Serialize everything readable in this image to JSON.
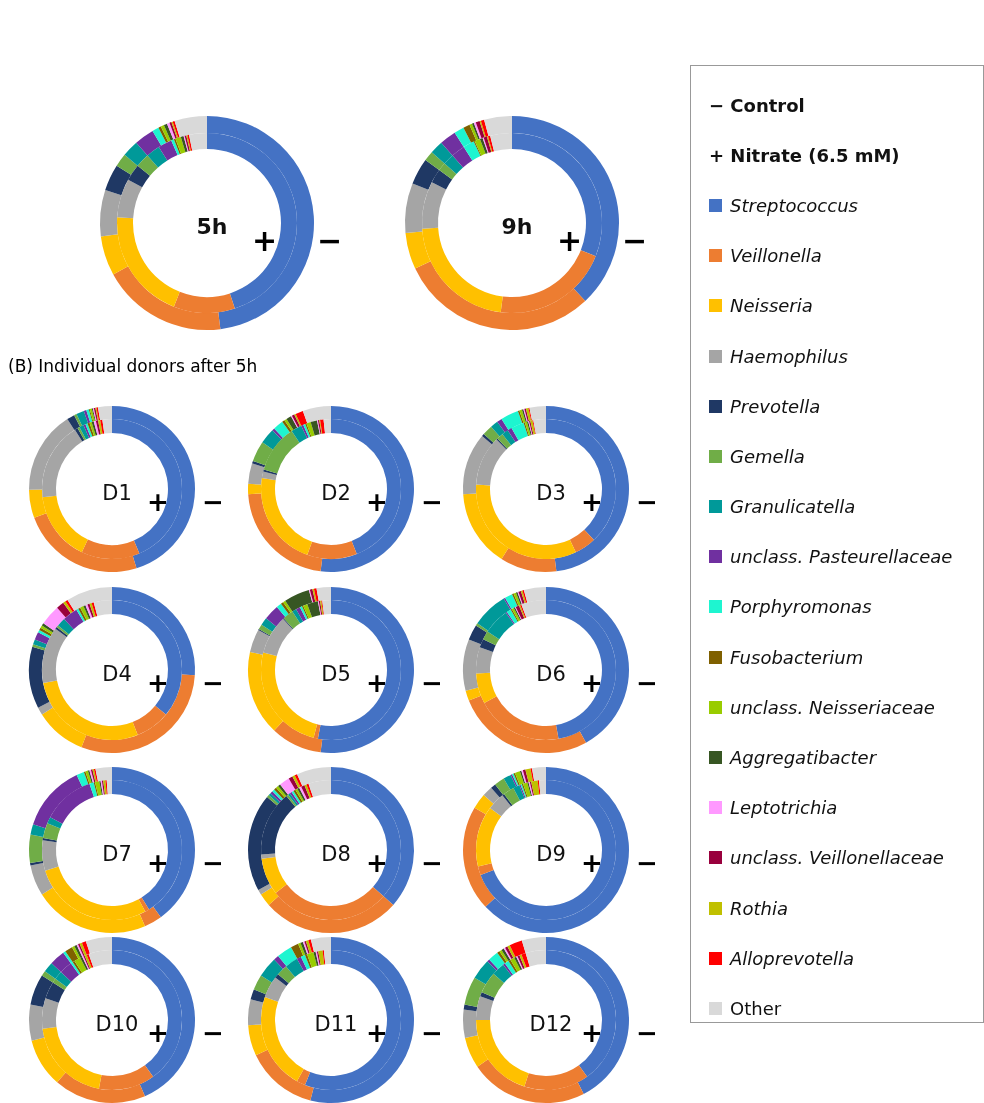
{
  "chart_data": [
    {
      "type": "donut",
      "title": "5h",
      "legend": "right",
      "annotations": [
        "− Control",
        "+ Nitrate (6.5 mM)"
      ],
      "categories": [
        "Streptococcus",
        "Veillonella",
        "Neisseria",
        "Haemophilus",
        "Prevotella",
        "Gemella",
        "Granulicatella",
        "unclass. Pasteurellaceae",
        "Porphyromonas",
        "Fusobacterium",
        "unclass. Neisseriaceae",
        "Aggregatibacter",
        "Leptotrichia",
        "unclass. Veillonellaceae",
        "Rothia",
        "Alloprevotella",
        "Other"
      ],
      "colors": [
        "#4472c4",
        "#ed7d31",
        "#ffc000",
        "#a5a5a5",
        "#1f3864",
        "#70ad47",
        "#009999",
        "#7030a0",
        "#1ef5d0",
        "#7f6000",
        "#99cc00",
        "#375623",
        "#ff99ff",
        "#99003d",
        "#c0c000",
        "#ff0000",
        "#d9d9d9"
      ],
      "series": [
        {
          "name": "−",
          "values": [
            48,
            19,
            6,
            7,
            4,
            2,
            2.5,
            3,
            1,
            0.4,
            0.5,
            0.5,
            0.4,
            0.3,
            0.2,
            0.3,
            4.9
          ]
        },
        {
          "name": "+",
          "values": [
            45,
            11,
            20,
            7,
            3,
            2.5,
            2.5,
            2.5,
            0.5,
            0.3,
            1,
            0.5,
            0.2,
            0.3,
            0.2,
            0.3,
            3.2
          ]
        }
      ]
    },
    {
      "type": "donut",
      "title": "9h",
      "categories": [
        null,
        null,
        null,
        null,
        null,
        null,
        null,
        null,
        null,
        null,
        null,
        null,
        null,
        null,
        null,
        null,
        null
      ],
      "colors": [
        "#4472c4",
        "#ed7d31",
        "#ffc000",
        "#a5a5a5",
        "#1f3864",
        "#70ad47",
        "#009999",
        "#7030a0",
        "#1ef5d0",
        "#7f6000",
        "#99cc00",
        "#375623",
        "#ff99ff",
        "#99003d",
        "#c0c000",
        "#ff0000",
        "#d9d9d9"
      ],
      "series": [
        {
          "name": "−",
          "values": [
            38,
            30,
            5.5,
            7.5,
            4,
            1.5,
            2,
            2.5,
            1.5,
            1,
            0.4,
            0.3,
            0.3,
            0.6,
            0.2,
            0.5,
            4.2
          ]
        },
        {
          "name": "+",
          "values": [
            31,
            21,
            22,
            8.5,
            2.5,
            1.5,
            2,
            2.5,
            2,
            0.2,
            1,
            0.5,
            0.2,
            0.6,
            0.2,
            0.4,
            3.9
          ]
        }
      ]
    },
    {
      "type": "donut",
      "title": "D1",
      "annotations": [
        "(B) Individual donors after 5h"
      ],
      "categories": [
        null,
        null,
        null,
        null,
        null,
        null,
        null,
        null,
        null,
        null,
        null,
        null,
        null,
        null,
        null,
        null,
        null
      ],
      "colors": [
        "#4472c4",
        "#ed7d31",
        "#ffc000",
        "#a5a5a5",
        "#1f3864",
        "#70ad47",
        "#009999",
        "#7030a0",
        "#1ef5d0",
        "#7f6000",
        "#99cc00",
        "#375623",
        "#ff99ff",
        "#99003d",
        "#c0c000",
        "#ff0000",
        "#d9d9d9"
      ],
      "series": [
        {
          "name": "−",
          "values": [
            45,
            24,
            5.5,
            16,
            1.5,
            0.5,
            1.5,
            0.5,
            0.5,
            0.2,
            0.4,
            0.2,
            0.2,
            0.3,
            0.2,
            0.3,
            2.7
          ]
        },
        {
          "name": "+",
          "values": [
            43.6,
            13.5,
            16,
            18,
            0.7,
            0.5,
            1,
            0.5,
            0.5,
            0.5,
            0.5,
            0.5,
            0.5,
            0.5,
            0.5,
            0.5,
            2.2
          ]
        }
      ]
    },
    {
      "type": "donut",
      "title": "D2",
      "categories": [
        null,
        null,
        null,
        null,
        null,
        null,
        null,
        null,
        null,
        null,
        null,
        null,
        null,
        null,
        null,
        null,
        null
      ],
      "colors": [
        "#4472c4",
        "#ed7d31",
        "#ffc000",
        "#a5a5a5",
        "#1f3864",
        "#70ad47",
        "#009999",
        "#7030a0",
        "#1ef5d0",
        "#7f6000",
        "#99cc00",
        "#375623",
        "#ff99ff",
        "#99003d",
        "#c0c000",
        "#ff0000",
        "#d9d9d9"
      ],
      "series": [
        {
          "name": "−",
          "values": [
            52,
            22,
            2,
            4,
            0.5,
            4,
            3,
            0.5,
            2,
            0.5,
            0.5,
            1,
            0.2,
            0.5,
            0.3,
            1.5,
            5.5
          ]
        },
        {
          "name": "+",
          "values": [
            44,
            11.5,
            22,
            1.5,
            0.5,
            11,
            2.5,
            0.5,
            0.5,
            0.3,
            1,
            1.5,
            0.2,
            0.3,
            0.2,
            0.8,
            1.7
          ]
        }
      ]
    },
    {
      "type": "donut",
      "title": "D3",
      "categories": [
        null,
        null,
        null,
        null,
        null,
        null,
        null,
        null,
        null,
        null,
        null,
        null,
        null,
        null,
        null,
        null,
        null
      ],
      "colors": [
        "#4472c4",
        "#ed7d31",
        "#ffc000",
        "#a5a5a5",
        "#1f3864",
        "#70ad47",
        "#009999",
        "#7030a0",
        "#1ef5d0",
        "#7f6000",
        "#99cc00",
        "#375623",
        "#ff99ff",
        "#99003d",
        "#c0c000",
        "#ff0000",
        "#d9d9d9"
      ],
      "series": [
        {
          "name": "−",
          "values": [
            48,
            11,
            15,
            12,
            0.5,
            2,
            1.5,
            1,
            3.5,
            0.3,
            0.5,
            0.3,
            0.2,
            0.3,
            0.5,
            0.2,
            3.2
          ]
        },
        {
          "name": "+",
          "values": [
            38,
            5,
            33,
            11.5,
            0.3,
            1.5,
            1.5,
            1,
            3,
            0.3,
            0.5,
            0.3,
            0.2,
            0.3,
            0.5,
            0.2,
            2.9
          ]
        }
      ]
    },
    {
      "type": "donut",
      "title": "D4",
      "categories": [
        null,
        null,
        null,
        null,
        null,
        null,
        null,
        null,
        null,
        null,
        null,
        null,
        null,
        null,
        null,
        null,
        null
      ],
      "colors": [
        "#4472c4",
        "#ed7d31",
        "#ffc000",
        "#a5a5a5",
        "#1f3864",
        "#70ad47",
        "#009999",
        "#7030a0",
        "#1ef5d0",
        "#7f6000",
        "#99cc00",
        "#375623",
        "#ff99ff",
        "#99003d",
        "#c0c000",
        "#ff0000",
        "#d9d9d9"
      ],
      "series": [
        {
          "name": "−",
          "values": [
            26,
            30,
            10,
            1.5,
            12,
            0.5,
            1,
            1.5,
            0.5,
            0.5,
            0.5,
            0.5,
            4,
            1.5,
            0.5,
            0.5,
            9
          ]
        },
        {
          "name": "+",
          "values": [
            36,
            8,
            28,
            13,
            0.5,
            0.5,
            2,
            3.5,
            0.5,
            0.5,
            0.8,
            0.5,
            0.5,
            0.5,
            0.5,
            0.5,
            4.2
          ]
        }
      ]
    },
    {
      "type": "donut",
      "title": "D5",
      "categories": [
        null,
        null,
        null,
        null,
        null,
        null,
        null,
        null,
        null,
        null,
        null,
        null,
        null,
        null,
        null,
        null,
        null
      ],
      "colors": [
        "#4472c4",
        "#ed7d31",
        "#ffc000",
        "#a5a5a5",
        "#1f3864",
        "#70ad47",
        "#009999",
        "#7030a0",
        "#1ef5d0",
        "#7f6000",
        "#99cc00",
        "#375623",
        "#ff99ff",
        "#99003d",
        "#c0c000",
        "#ff0000",
        "#d9d9d9"
      ],
      "series": [
        {
          "name": "−",
          "values": [
            52,
            10,
            16.5,
            4.5,
            0.2,
            1,
            1.5,
            3,
            1,
            0.5,
            0.5,
            5,
            0.2,
            0.5,
            0.3,
            0.5,
            2.8
          ]
        },
        {
          "name": "+",
          "values": [
            53,
            1,
            25,
            9,
            0.2,
            2.5,
            1,
            1,
            0.5,
            0.3,
            1,
            2.5,
            0.2,
            0.3,
            0.3,
            0.2,
            2
          ]
        }
      ]
    },
    {
      "type": "donut",
      "title": "D6",
      "categories": [
        null,
        null,
        null,
        null,
        null,
        null,
        null,
        null,
        null,
        null,
        null,
        null,
        null,
        null,
        null,
        null,
        null
      ],
      "colors": [
        "#4472c4",
        "#ed7d31",
        "#ffc000",
        "#a5a5a5",
        "#1f3864",
        "#70ad47",
        "#009999",
        "#7030a0",
        "#1ef5d0",
        "#7f6000",
        "#99cc00",
        "#375623",
        "#ff99ff",
        "#99003d",
        "#c0c000",
        "#ff0000",
        "#d9d9d9"
      ],
      "series": [
        {
          "name": "−",
          "values": [
            42,
            27,
            2,
            10,
            3,
            0.5,
            7,
            0.3,
            1.5,
            0.3,
            0.5,
            0.3,
            0.2,
            0.5,
            0.3,
            0.3,
            4.3
          ]
        },
        {
          "name": "+",
          "values": [
            47,
            20,
            7,
            6,
            2,
            2,
            6,
            0.3,
            1,
            0.3,
            0.5,
            0.3,
            0.2,
            0.8,
            0.3,
            0.3,
            5.7
          ]
        }
      ]
    },
    {
      "type": "donut",
      "title": "D7",
      "categories": [
        null,
        null,
        null,
        null,
        null,
        null,
        null,
        null,
        null,
        null,
        null,
        null,
        null,
        null,
        null,
        null,
        null
      ],
      "colors": [
        "#4472c4",
        "#ed7d31",
        "#ffc000",
        "#a5a5a5",
        "#1f3864",
        "#70ad47",
        "#009999",
        "#7030a0",
        "#1ef5d0",
        "#7f6000",
        "#99cc00",
        "#375623",
        "#ff99ff",
        "#99003d",
        "#c0c000",
        "#ff0000",
        "#d9d9d9"
      ],
      "series": [
        {
          "name": "−",
          "values": [
            40,
            3.5,
            22.5,
            6,
            0.5,
            5.5,
            2,
            13,
            1.5,
            0.3,
            0.5,
            0.3,
            0.3,
            0.3,
            0.3,
            0.3,
            3.2
          ]
        },
        {
          "name": "+",
          "values": [
            41,
            1,
            28,
            7,
            0.5,
            3.5,
            1.5,
            12,
            1,
            0.3,
            1,
            0.3,
            0.3,
            0.3,
            0.5,
            0.3,
            1.2
          ]
        }
      ]
    },
    {
      "type": "donut",
      "title": "D8",
      "categories": [
        null,
        null,
        null,
        null,
        null,
        null,
        null,
        null,
        null,
        null,
        null,
        null,
        null,
        null,
        null,
        null,
        null
      ],
      "colors": [
        "#4472c4",
        "#ed7d31",
        "#ffc000",
        "#a5a5a5",
        "#1f3864",
        "#70ad47",
        "#009999",
        "#7030a0",
        "#1ef5d0",
        "#7f6000",
        "#99cc00",
        "#375623",
        "#ff99ff",
        "#99003d",
        "#c0c000",
        "#ff0000",
        "#d9d9d9"
      ],
      "series": [
        {
          "name": "−",
          "values": [
            36.5,
            27,
            2.5,
            1,
            19,
            0.5,
            0.5,
            0.5,
            0.5,
            0.5,
            0.5,
            0.5,
            2,
            0.8,
            0.5,
            0.5,
            6.7
          ]
        },
        {
          "name": "+",
          "values": [
            36.5,
            28,
            8.5,
            1,
            15,
            0.5,
            0.5,
            0.5,
            0.5,
            0.5,
            0.5,
            0.5,
            0.5,
            0.8,
            0.5,
            0.5,
            5.2
          ]
        }
      ]
    },
    {
      "type": "donut",
      "title": "D9",
      "categories": [
        null,
        null,
        null,
        null,
        null,
        null,
        null,
        null,
        null,
        null,
        null,
        null,
        null,
        null,
        null,
        null,
        null
      ],
      "colors": [
        "#4472c4",
        "#ed7d31",
        "#ffc000",
        "#a5a5a5",
        "#1f3864",
        "#70ad47",
        "#009999",
        "#7030a0",
        "#1ef5d0",
        "#7f6000",
        "#99cc00",
        "#375623",
        "#ff99ff",
        "#99003d",
        "#c0c000",
        "#ff0000",
        "#d9d9d9"
      ],
      "series": [
        {
          "name": "−",
          "values": [
            63,
            20.5,
            3,
            2,
            1,
            2,
            1.5,
            0.3,
            0.3,
            0.3,
            1,
            0.3,
            0.3,
            0.5,
            1,
            0.3,
            2.7
          ]
        },
        {
          "name": "+",
          "values": [
            69,
            2,
            14,
            4,
            0.5,
            2.5,
            1.5,
            0.3,
            0.3,
            0.3,
            1,
            0.3,
            0.3,
            0.3,
            1.5,
            0.3,
            1.6
          ]
        }
      ]
    },
    {
      "type": "donut",
      "title": "D10",
      "categories": [
        null,
        null,
        null,
        null,
        null,
        null,
        null,
        null,
        null,
        null,
        null,
        null,
        null,
        null,
        null,
        null,
        null
      ],
      "colors": [
        "#4472c4",
        "#ed7d31",
        "#ffc000",
        "#a5a5a5",
        "#1f3864",
        "#70ad47",
        "#009999",
        "#7030a0",
        "#1ef5d0",
        "#7f6000",
        "#99cc00",
        "#375623",
        "#ff99ff",
        "#99003d",
        "#c0c000",
        "#ff0000",
        "#d9d9d9"
      ],
      "series": [
        {
          "name": "−",
          "values": [
            43.5,
            18,
            9.5,
            7,
            6,
            1,
            2,
            3,
            0.5,
            1.5,
            0.5,
            0.5,
            0.3,
            0.3,
            0.5,
            0.8,
            5.1
          ]
        },
        {
          "name": "+",
          "values": [
            40,
            13,
            20,
            7,
            4,
            1,
            2,
            3,
            0.5,
            0.5,
            1.5,
            0.5,
            0.3,
            0.3,
            0.5,
            0.5,
            5.4
          ]
        }
      ]
    },
    {
      "type": "donut",
      "title": "D11",
      "categories": [
        null,
        null,
        null,
        null,
        null,
        null,
        null,
        null,
        null,
        null,
        null,
        null,
        null,
        null,
        null,
        null,
        null
      ],
      "colors": [
        "#4472c4",
        "#ed7d31",
        "#ffc000",
        "#a5a5a5",
        "#1f3864",
        "#70ad47",
        "#009999",
        "#7030a0",
        "#1ef5d0",
        "#7f6000",
        "#99cc00",
        "#375623",
        "#ff99ff",
        "#99003d",
        "#c0c000",
        "#ff0000",
        "#d9d9d9"
      ],
      "series": [
        {
          "name": "−",
          "values": [
            54,
            14,
            6,
            5,
            2,
            3,
            4,
            1,
            3,
            1.5,
            0.5,
            0.5,
            0.3,
            0.3,
            0.5,
            0.5,
            3.9
          ]
        },
        {
          "name": "+",
          "values": [
            55.5,
            2,
            22,
            5,
            1,
            2.5,
            3,
            1,
            1,
            0.5,
            1.5,
            0.5,
            0.3,
            0.3,
            1,
            0.3,
            1.6
          ]
        }
      ]
    },
    {
      "type": "donut",
      "title": "D12",
      "categories": [
        null,
        null,
        null,
        null,
        null,
        null,
        null,
        null,
        null,
        null,
        null,
        null,
        null,
        null,
        null,
        null,
        null
      ],
      "colors": [
        "#4472c4",
        "#ed7d31",
        "#ffc000",
        "#a5a5a5",
        "#1f3864",
        "#70ad47",
        "#009999",
        "#7030a0",
        "#1ef5d0",
        "#7f6000",
        "#99cc00",
        "#375623",
        "#ff99ff",
        "#99003d",
        "#c0c000",
        "#ff0000",
        "#d9d9d9"
      ],
      "series": [
        {
          "name": "−",
          "values": [
            42.5,
            23,
            6,
            5.5,
            1,
            5.5,
            4,
            0.5,
            2,
            0.5,
            0.5,
            0.5,
            0.3,
            0.5,
            0.5,
            2.5,
            4.7
          ]
        },
        {
          "name": "+",
          "values": [
            40,
            15,
            20,
            5.5,
            1,
            5,
            3,
            0.5,
            1,
            0.5,
            1,
            0.5,
            0.3,
            0.5,
            0.5,
            1,
            4.7
          ]
        }
      ]
    }
  ]
}
